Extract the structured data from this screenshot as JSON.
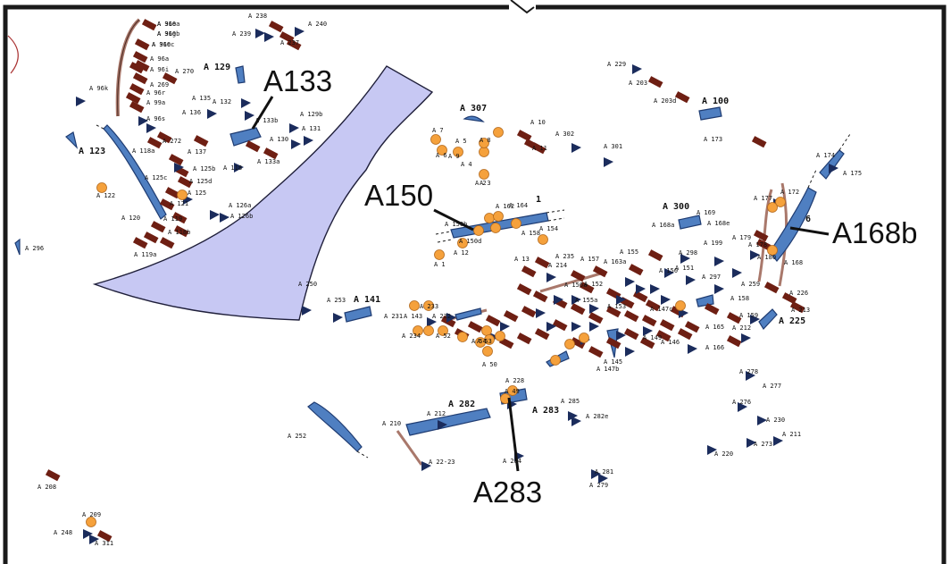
{
  "colors": {
    "frame": "#1a1a1a",
    "blue_fill": "#4f7fc1",
    "blue_stroke": "#1f3c72",
    "large_zone": "#c7c8f3",
    "triangle": "#1b2c5c",
    "rect": "#6e1f13",
    "orange": "#f5a13c",
    "orange_stroke": "#b46a1d",
    "drain": "#a9786b"
  },
  "callouts": [
    "A133",
    "A150",
    "A168b",
    "A283"
  ],
  "mid_labels": [
    "A 123",
    "A 300",
    "A 100",
    "A 141",
    "A 282",
    "A 283",
    "A 225",
    "A 307",
    "A 129"
  ],
  "labels": [
    "A 96e",
    "A 96g",
    "A 96c",
    "A 96a",
    "A 270",
    "A 96i",
    "A 269",
    "A 96r",
    "A 99a",
    "A 96k",
    "A 96s",
    "A 272",
    "A 118a",
    "A 137",
    "A 125b",
    "A 125d",
    "A 125c",
    "A 125",
    "A 122",
    "A 121",
    "A 120",
    "A 119",
    "A 119a",
    "A 118b",
    "A 126a",
    "A 126b",
    "A 118",
    "A 135",
    "A 136",
    "A 132",
    "A 133b",
    "A 133a",
    "A 129b",
    "A 131",
    "A 130",
    "A 238",
    "A 239",
    "A 240",
    "A 237",
    "A 296",
    "A 9",
    "A 5",
    "A 8",
    "A 7",
    "A 6",
    "A 4",
    "A 3",
    "A 2",
    "A 1",
    "A 10",
    "A 11",
    "A 302",
    "A 301",
    "A 162",
    "A 164",
    "A 150b",
    "A 158",
    "A 154",
    "A 150d",
    "A 12",
    "A 13",
    "A 235",
    "A 157",
    "A 163a",
    "A 155",
    "A 214",
    "A 156a",
    "A 155a",
    "A 152",
    "A 150",
    "A 151",
    "A 153",
    "A 149",
    "A 146",
    "A 145",
    "A 147b",
    "A 147c",
    "A 143",
    "A 232",
    "A 233",
    "A 231",
    "A 234",
    "A 52",
    "A 53",
    "A 54",
    "A 50",
    "A 49",
    "A 228",
    "A 229",
    "A 203",
    "A 203d",
    "A 173",
    "A 174",
    "A 175",
    "A 177",
    "A 172",
    "A 179",
    "A 178",
    "A 180",
    "A 168",
    "A 168a",
    "A 169",
    "A 168e",
    "A 199",
    "A 298",
    "A 297",
    "A 259",
    "A 158",
    "A 159",
    "A 226",
    "A 213",
    "A 212",
    "A 165",
    "A 166",
    "A 250",
    "A 253",
    "A 252",
    "A 210",
    "A 212",
    "A 22-23",
    "A 284",
    "A 285",
    "A 282e",
    "A 281",
    "A 279",
    "A 278",
    "A 277",
    "A 276",
    "A 230",
    "A 273",
    "A 211",
    "A 220",
    "A 208",
    "A 209",
    "A 248",
    "A 311",
    "A 310a",
    "A 310b",
    "A 310c"
  ],
  "numerals": [
    "1",
    "6"
  ]
}
